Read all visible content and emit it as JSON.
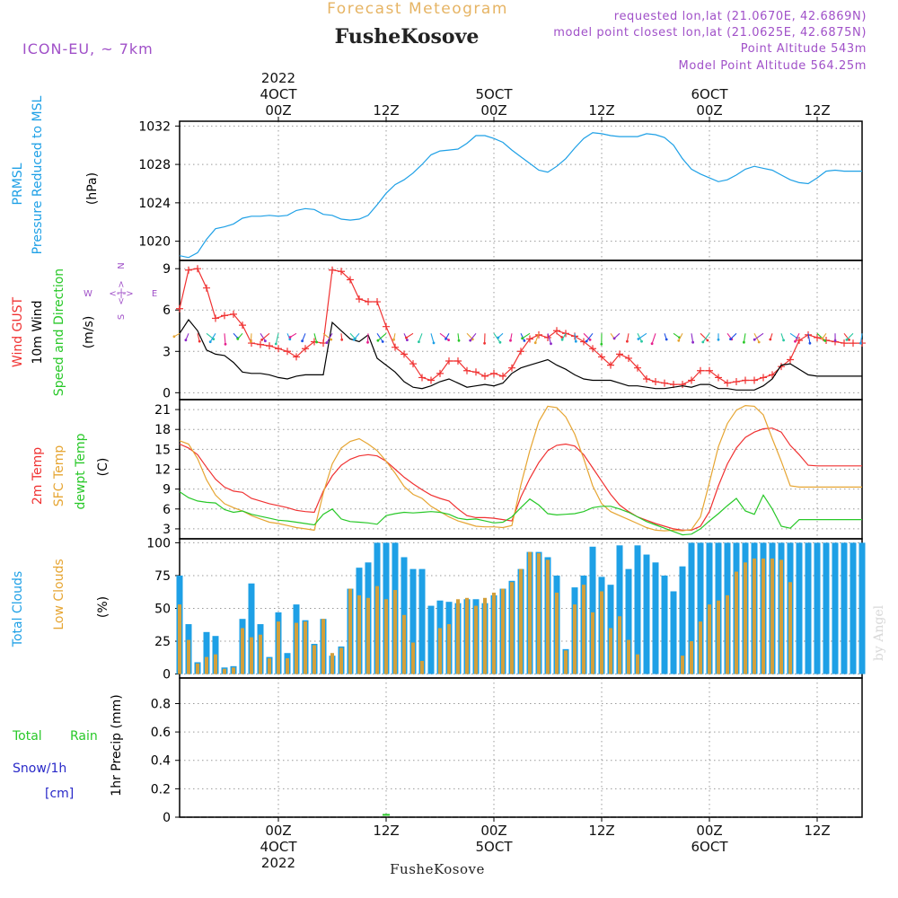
{
  "header": {
    "supertitle": "Forecast Meteogram",
    "title": "FusheKosove",
    "model": "ICON-EU, ~ 7km",
    "requested": "requested lon,lat (21.0670E, 42.6869N)",
    "closest": "model point closest lon,lat (21.0625E, 42.6875N)",
    "altitude": "Point Altitude 543m",
    "model_altitude": "Model Point Altitude 564.25m",
    "footer": "FusheKosove",
    "credit": "by Angel"
  },
  "colors": {
    "blue": "#1ea0e6",
    "red": "#f03232",
    "black": "#000000",
    "green": "#28c828",
    "orange": "#e6a532",
    "purple": "#a050c8",
    "darkblue": "#2828c8",
    "supertitle": "#e6b464"
  },
  "time_axis": {
    "top_ticks": [
      {
        "t": 0,
        "lines": [
          "2022",
          "4OCT",
          "00Z"
        ]
      },
      {
        "t": 12,
        "lines": [
          "12Z"
        ]
      },
      {
        "t": 24,
        "lines": [
          "5OCT",
          "00Z"
        ]
      },
      {
        "t": 36,
        "lines": [
          "12Z"
        ]
      },
      {
        "t": 48,
        "lines": [
          "6OCT",
          "00Z"
        ]
      },
      {
        "t": 60,
        "lines": [
          "12Z"
        ]
      }
    ],
    "bottom_ticks": [
      {
        "t": 0,
        "lines": [
          "00Z",
          "4OCT",
          "2022"
        ]
      },
      {
        "t": 12,
        "lines": [
          "12Z"
        ]
      },
      {
        "t": 24,
        "lines": [
          "00Z",
          "5OCT"
        ]
      },
      {
        "t": 36,
        "lines": [
          "12Z"
        ]
      },
      {
        "t": 48,
        "lines": [
          "00Z",
          "6OCT"
        ]
      },
      {
        "t": 60,
        "lines": [
          "12Z"
        ]
      }
    ]
  },
  "panel_labels": {
    "pressure": {
      "name": "PRMSL",
      "sub": "Pressure Reduced to MSL",
      "unit": "(hPa)"
    },
    "wind": {
      "gust": "Wind GUST",
      "wind": "10m Wind",
      "speed": "Speed and Direction",
      "unit": "(m/s)",
      "compass_n": "N",
      "compass_s": "S",
      "compass_w": "W",
      "compass_e": "E",
      "compass_mid": "<-|->"
    },
    "temp": {
      "t2m": "2m Temp",
      "sfc": "SFC Temp",
      "dew": "dewpt Temp",
      "unit": "(C)"
    },
    "clouds": {
      "total": "Total Clouds",
      "low": "Low Clouds",
      "unit": "(%)"
    },
    "precip": {
      "total": "Total",
      "rain": "Rain",
      "snow": "Snow/1h",
      "cm": "[cm]",
      "label": "1hr Precip (mm)"
    }
  },
  "chart_data": [
    {
      "type": "line",
      "id": "pressure",
      "title": "PRMSL Pressure Reduced to MSL",
      "ylabel": "(hPa)",
      "x_start": -11,
      "x_step": 1,
      "xlim": [
        -11,
        65
      ],
      "ylim": [
        1018,
        1032.5
      ],
      "yticks": [
        1020,
        1024,
        1028,
        1032
      ],
      "series": [
        {
          "name": "PRMSL",
          "color": "#1ea0e6",
          "values": [
            1018.5,
            1018.3,
            1018.8,
            1020.2,
            1021.3,
            1021.5,
            1021.8,
            1022.4,
            1022.6,
            1022.6,
            1022.7,
            1022.6,
            1022.7,
            1023.2,
            1023.4,
            1023.3,
            1022.8,
            1022.7,
            1022.3,
            1022.2,
            1022.3,
            1022.7,
            1023.8,
            1025.0,
            1025.9,
            1026.4,
            1027.1,
            1028.0,
            1029.0,
            1029.4,
            1029.5,
            1029.6,
            1030.2,
            1031.0,
            1031.0,
            1030.7,
            1030.3,
            1029.5,
            1028.8,
            1028.1,
            1027.4,
            1027.2,
            1027.8,
            1028.6,
            1029.7,
            1030.7,
            1031.3,
            1031.2,
            1031.0,
            1030.9,
            1030.9,
            1030.9,
            1031.2,
            1031.1,
            1030.8,
            1030.0,
            1028.6,
            1027.5,
            1027.0,
            1026.6,
            1026.2,
            1026.4,
            1026.9,
            1027.5,
            1027.8,
            1027.6,
            1027.4,
            1026.9,
            1026.4,
            1026.1,
            1026.0,
            1026.6,
            1027.3,
            1027.4,
            1027.3,
            1027.3,
            1027.3
          ]
        }
      ]
    },
    {
      "type": "line",
      "id": "wind",
      "title": "Wind GUST / 10m Wind Speed and Direction",
      "ylabel": "(m/s)",
      "x_start": -11,
      "x_step": 1,
      "xlim": [
        -11,
        65
      ],
      "ylim": [
        -0.5,
        9.6
      ],
      "yticks": [
        0,
        3,
        6,
        9
      ],
      "series": [
        {
          "name": "Wind GUST",
          "color": "#f03232",
          "marker": "+",
          "values": [
            6.1,
            8.9,
            9.0,
            7.6,
            5.4,
            5.6,
            5.7,
            4.9,
            3.6,
            3.5,
            3.4,
            3.2,
            3.0,
            2.6,
            3.2,
            3.7,
            3.6,
            8.9,
            8.8,
            8.2,
            6.8,
            6.6,
            6.6,
            4.8,
            3.3,
            2.8,
            2.1,
            1.1,
            0.9,
            1.4,
            2.3,
            2.3,
            1.6,
            1.5,
            1.2,
            1.4,
            1.2,
            1.8,
            3.0,
            3.9,
            4.2,
            4.0,
            4.5,
            4.3,
            4.1,
            3.7,
            3.2,
            2.6,
            2.0,
            2.8,
            2.5,
            1.8,
            1.0,
            0.8,
            0.7,
            0.6,
            0.6,
            0.9,
            1.6,
            1.6,
            1.1,
            0.7,
            0.8,
            0.9,
            0.9,
            1.1,
            1.3,
            1.9,
            2.4,
            3.8,
            4.2,
            4.0,
            3.8,
            3.7,
            3.6,
            3.6,
            3.6
          ]
        },
        {
          "name": "10m Wind",
          "color": "#000000",
          "values": [
            4.3,
            5.3,
            4.5,
            3.1,
            2.8,
            2.7,
            2.2,
            1.5,
            1.4,
            1.4,
            1.3,
            1.1,
            1.0,
            1.2,
            1.3,
            1.3,
            1.3,
            5.1,
            4.5,
            3.9,
            3.7,
            4.2,
            2.5,
            2.0,
            1.5,
            0.8,
            0.4,
            0.3,
            0.5,
            0.8,
            1.0,
            0.7,
            0.4,
            0.5,
            0.6,
            0.5,
            0.7,
            1.4,
            1.8,
            2.0,
            2.2,
            2.4,
            2.0,
            1.7,
            1.3,
            1.0,
            0.9,
            0.9,
            0.9,
            0.7,
            0.5,
            0.5,
            0.4,
            0.3,
            0.3,
            0.4,
            0.5,
            0.4,
            0.6,
            0.6,
            0.3,
            0.3,
            0.2,
            0.2,
            0.2,
            0.5,
            1.0,
            2.0,
            2.1,
            1.7,
            1.3,
            1.2,
            1.2,
            1.2,
            1.2,
            1.2,
            1.2
          ]
        }
      ]
    },
    {
      "type": "line",
      "id": "temperature",
      "title": "2m Temp / SFC Temp / dewpt Temp",
      "ylabel": "(C)",
      "x_start": -11,
      "x_step": 1,
      "xlim": [
        -11,
        65
      ],
      "ylim": [
        1.5,
        22.5
      ],
      "yticks": [
        3,
        6,
        9,
        12,
        15,
        18,
        21
      ],
      "series": [
        {
          "name": "2m Temp",
          "color": "#f03232",
          "values": [
            15.8,
            15.2,
            14.2,
            12.3,
            10.5,
            9.3,
            8.7,
            8.5,
            7.6,
            7.2,
            6.8,
            6.5,
            6.2,
            5.8,
            5.6,
            5.5,
            8.7,
            11.0,
            12.6,
            13.5,
            14.0,
            14.2,
            14.0,
            13.2,
            12.0,
            10.8,
            9.8,
            8.9,
            8.1,
            7.6,
            7.2,
            6.0,
            5.0,
            4.7,
            4.7,
            4.6,
            4.4,
            4.2,
            7.8,
            10.6,
            13.0,
            14.8,
            15.6,
            15.8,
            15.5,
            14.2,
            12.2,
            10.2,
            8.2,
            6.6,
            5.6,
            4.8,
            4.3,
            3.8,
            3.4,
            3.0,
            2.8,
            2.8,
            3.4,
            5.6,
            9.5,
            12.8,
            15.2,
            16.8,
            17.6,
            18.1,
            18.2,
            17.6,
            15.6,
            14.2,
            12.6,
            12.5,
            12.5,
            12.5,
            12.5,
            12.5,
            12.5
          ]
        },
        {
          "name": "SFC Temp",
          "color": "#e6a532",
          "values": [
            16.3,
            15.8,
            13.6,
            10.4,
            8.1,
            6.8,
            6.2,
            5.7,
            5.0,
            4.5,
            4.0,
            3.8,
            3.5,
            3.2,
            3.0,
            2.8,
            8.4,
            12.8,
            15.2,
            16.2,
            16.6,
            15.8,
            14.8,
            13.2,
            11.4,
            9.4,
            8.2,
            7.6,
            6.4,
            5.6,
            4.8,
            4.2,
            3.8,
            3.4,
            3.3,
            3.3,
            3.2,
            3.5,
            9.6,
            14.8,
            19.2,
            21.5,
            21.3,
            19.9,
            17.3,
            13.6,
            9.5,
            6.8,
            5.6,
            5.0,
            4.4,
            3.8,
            3.2,
            2.8,
            2.7,
            2.8,
            2.7,
            2.9,
            4.8,
            10.0,
            15.4,
            18.9,
            20.9,
            21.6,
            21.5,
            20.2,
            16.6,
            13.2,
            9.5,
            9.3,
            9.3,
            9.3,
            9.3,
            9.3,
            9.3,
            9.3,
            9.3
          ]
        },
        {
          "name": "dewpt Temp",
          "color": "#28c828",
          "values": [
            8.6,
            7.7,
            7.2,
            7.0,
            6.9,
            5.9,
            5.5,
            5.7,
            5.2,
            4.9,
            4.6,
            4.3,
            4.2,
            4.0,
            3.8,
            3.6,
            5.2,
            6.0,
            4.5,
            4.1,
            4.0,
            3.9,
            3.7,
            5.0,
            5.3,
            5.5,
            5.4,
            5.5,
            5.6,
            5.5,
            5.2,
            4.6,
            4.4,
            4.5,
            4.2,
            3.9,
            4.0,
            4.8,
            6.2,
            7.5,
            6.6,
            5.3,
            5.1,
            5.2,
            5.3,
            5.6,
            6.2,
            6.4,
            6.4,
            6.0,
            5.5,
            4.8,
            4.1,
            3.6,
            3.1,
            2.6,
            2.1,
            2.2,
            3.0,
            4.2,
            5.3,
            6.5,
            7.6,
            5.7,
            5.2,
            8.1,
            6.0,
            3.4,
            3.1,
            4.4,
            4.4,
            4.4,
            4.4,
            4.4,
            4.4,
            4.4,
            4.4
          ]
        }
      ]
    },
    {
      "type": "bar",
      "id": "clouds",
      "title": "Total Clouds / Low Clouds",
      "ylabel": "(%)",
      "x_start": -11,
      "x_step": 1,
      "xlim": [
        -11,
        65
      ],
      "ylim": [
        -3,
        103
      ],
      "yticks": [
        0,
        25,
        50,
        75,
        100
      ],
      "series": [
        {
          "name": "Total Clouds",
          "color": "#1ea0e6",
          "values": [
            75,
            38,
            9,
            32,
            29,
            5,
            6,
            42,
            69,
            38,
            13,
            47,
            16,
            53,
            41,
            23,
            42,
            14,
            21,
            65,
            81,
            85,
            100,
            100,
            100,
            89,
            80,
            80,
            52,
            56,
            55,
            54,
            57,
            57,
            54,
            60,
            65,
            71,
            80,
            93,
            93,
            89,
            75,
            19,
            66,
            75,
            97,
            74,
            68,
            98,
            80,
            98,
            91,
            85,
            75,
            63,
            82,
            100,
            100,
            100,
            100,
            100,
            100,
            100,
            100,
            100,
            100,
            100,
            100,
            100,
            100,
            100,
            100,
            100,
            100,
            100,
            100
          ]
        },
        {
          "name": "Low Clouds",
          "color": "#d2a03c",
          "values": [
            53,
            26,
            8,
            13,
            15,
            4,
            5,
            35,
            28,
            30,
            12,
            40,
            12,
            39,
            40,
            22,
            42,
            16,
            20,
            65,
            60,
            58,
            67,
            57,
            64,
            45,
            24,
            10,
            0,
            35,
            38,
            57,
            58,
            52,
            58,
            62,
            65,
            70,
            80,
            93,
            92,
            87,
            62,
            18,
            53,
            68,
            47,
            63,
            35,
            44,
            26,
            15,
            0,
            0,
            0,
            0,
            14,
            25,
            40,
            53,
            56,
            60,
            78,
            85,
            88,
            88,
            88,
            87,
            70,
            0,
            0,
            0,
            0,
            0,
            0,
            0,
            0
          ]
        }
      ]
    },
    {
      "type": "bar",
      "id": "precip",
      "title": "1hr Precip (mm)",
      "ylabel": "1hr Precip (mm)",
      "x_start": -11,
      "x_step": 1,
      "xlim": [
        -11,
        65
      ],
      "ylim": [
        0,
        0.98
      ],
      "yticks": [
        0,
        0.2,
        0.4,
        0.6,
        0.8
      ],
      "series": [
        {
          "name": "Total",
          "color": "#28c828",
          "values": [
            0,
            0,
            0,
            0,
            0,
            0,
            0,
            0,
            0,
            0,
            0,
            0,
            0,
            0,
            0,
            0,
            0,
            0,
            0,
            0,
            0,
            0,
            0,
            0.01,
            0,
            0,
            0,
            0,
            0,
            0,
            0,
            0,
            0,
            0,
            0,
            0,
            0,
            0,
            0,
            0,
            0,
            0,
            0,
            0,
            0,
            0,
            0,
            0,
            0,
            0,
            0,
            0,
            0,
            0,
            0,
            0,
            0,
            0,
            0,
            0,
            0,
            0,
            0,
            0,
            0,
            0,
            0,
            0,
            0,
            0,
            0,
            0,
            0,
            0,
            0,
            0,
            0
          ]
        },
        {
          "name": "Rain",
          "color": "#28c828",
          "values": [
            0,
            0,
            0,
            0,
            0,
            0,
            0,
            0,
            0,
            0,
            0,
            0,
            0,
            0,
            0,
            0,
            0,
            0,
            0,
            0,
            0,
            0,
            0,
            0,
            0,
            0,
            0,
            0,
            0,
            0,
            0,
            0,
            0,
            0,
            0,
            0,
            0,
            0,
            0,
            0,
            0,
            0,
            0,
            0,
            0,
            0,
            0,
            0,
            0,
            0,
            0,
            0,
            0,
            0,
            0,
            0,
            0,
            0,
            0,
            0,
            0,
            0,
            0,
            0,
            0,
            0,
            0,
            0,
            0,
            0,
            0,
            0,
            0,
            0,
            0,
            0,
            0
          ]
        }
      ]
    }
  ]
}
